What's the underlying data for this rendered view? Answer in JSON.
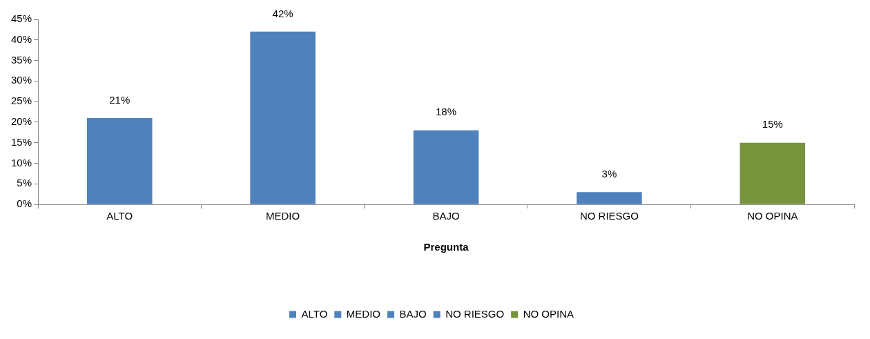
{
  "chart_data": {
    "type": "bar",
    "xlabel": "Pregunta",
    "categories": [
      "ALTO",
      "MEDIO",
      "BAJO",
      "NO RIESGO",
      "NO OPINA"
    ],
    "series": [
      {
        "name": "ALTO",
        "color": "#4f81bd",
        "values": [
          21,
          null,
          null,
          null,
          null
        ],
        "value_labels": [
          "21%",
          null,
          null,
          null,
          null
        ]
      },
      {
        "name": "MEDIO",
        "color": "#4f81bd",
        "values": [
          null,
          42,
          null,
          null,
          null
        ],
        "value_labels": [
          null,
          "42%",
          null,
          null,
          null
        ]
      },
      {
        "name": "BAJO",
        "color": "#4f81bd",
        "values": [
          null,
          null,
          18,
          null,
          null
        ],
        "value_labels": [
          null,
          null,
          "18%",
          null,
          null
        ]
      },
      {
        "name": "NO RIESGO",
        "color": "#4f81bd",
        "values": [
          null,
          null,
          null,
          3,
          null
        ],
        "value_labels": [
          null,
          null,
          null,
          "3%",
          null
        ]
      },
      {
        "name": "NO OPINA",
        "color": "#77933c",
        "values": [
          null,
          null,
          null,
          null,
          15
        ],
        "value_labels": [
          null,
          null,
          null,
          null,
          "15%"
        ]
      }
    ],
    "ylim": [
      0,
      45
    ],
    "yticks": [
      {
        "value": 0,
        "label": "0%"
      },
      {
        "value": 5,
        "label": "5%"
      },
      {
        "value": 10,
        "label": "10%"
      },
      {
        "value": 15,
        "label": "15%"
      },
      {
        "value": 20,
        "label": "20%"
      },
      {
        "value": 25,
        "label": "25%"
      },
      {
        "value": 30,
        "label": "30%"
      },
      {
        "value": 35,
        "label": "35%"
      },
      {
        "value": 40,
        "label": "40%"
      },
      {
        "value": 45,
        "label": "45%"
      }
    ],
    "grid": false,
    "legend": "bottom"
  }
}
